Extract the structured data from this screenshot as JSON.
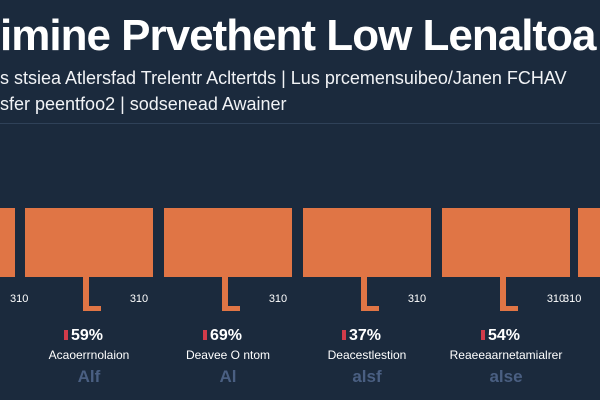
{
  "title": "imine Prvethent Low Lenaltoa",
  "subtitles": [
    "s stsiea Atlersfad Trelentr Acltertds | Lus prcemensuibeo/Janen FCHAV",
    "sfer peentfoo2 | sodsenead Awainer"
  ],
  "colors": {
    "background": "#1b2a3d",
    "bar": "#e07545",
    "pct_marker": "#d23b4a",
    "muted_text": "#4a5f82"
  },
  "chart_data": {
    "type": "bar",
    "title": "imine Prvethent Low Lenaltoa",
    "categories": [
      "Acaoerrnolaion",
      "Deavee O ntom",
      "Deacestlestion",
      "Reaeeaarnetamialrer"
    ],
    "values": [
      59,
      69,
      37,
      54
    ],
    "percent_labels": [
      "59%",
      "69%",
      "37%",
      "54%"
    ],
    "tick_labels": [
      "310",
      "310",
      "310",
      "310"
    ],
    "edge_tick_label": "310",
    "sublabels": [
      "Alf",
      "Al",
      "alsf",
      "alse"
    ],
    "grid": false
  }
}
